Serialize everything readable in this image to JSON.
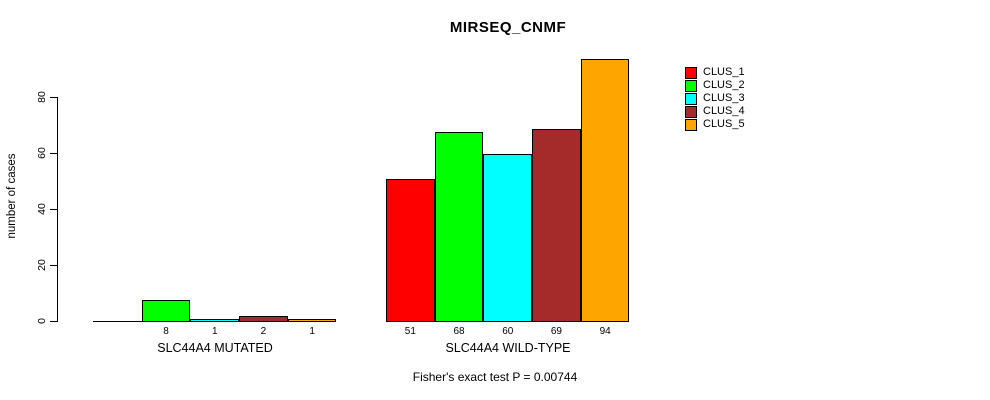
{
  "chart_data": {
    "type": "bar",
    "title": "MIRSEQ_CNMF",
    "ylabel": "number of cases",
    "xlabel": "",
    "yticks": [
      0,
      20,
      40,
      60,
      80
    ],
    "ylim": [
      0,
      96
    ],
    "grid": false,
    "legend_position": "right",
    "categories": [
      "SLC44A4 MUTATED",
      "SLC44A4 WILD-TYPE"
    ],
    "series": [
      {
        "name": "CLUS_1",
        "color": "#FF0000",
        "values": [
          0,
          51
        ]
      },
      {
        "name": "CLUS_2",
        "color": "#00FF00",
        "values": [
          8,
          68
        ]
      },
      {
        "name": "CLUS_3",
        "color": "#00FFFF",
        "values": [
          1,
          60
        ]
      },
      {
        "name": "CLUS_4",
        "color": "#A52A2A",
        "values": [
          2,
          69
        ]
      },
      {
        "name": "CLUS_5",
        "color": "#FFA500",
        "values": [
          1,
          94
        ]
      }
    ],
    "bar_value_labels": [
      [
        "",
        "8",
        "1",
        "2",
        "1"
      ],
      [
        "51",
        "68",
        "60",
        "69",
        "94"
      ]
    ],
    "annotation": "Fisher's exact test P = 0.00744"
  }
}
